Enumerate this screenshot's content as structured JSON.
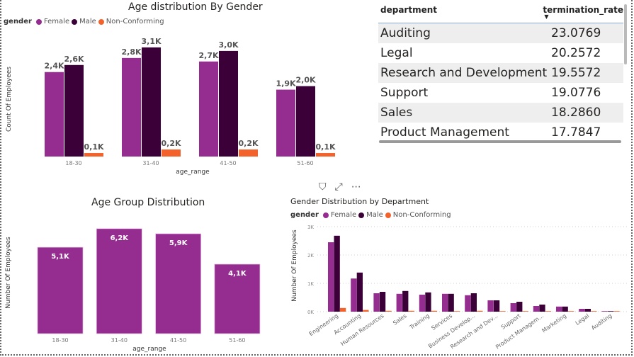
{
  "colors": {
    "female": "#952c8f",
    "male": "#3b0038",
    "nonconforming": "#f4622b"
  },
  "toolbar": {
    "filter_icon": "filter-icon",
    "focus_icon": "focus-mode-icon",
    "more_icon": "more-options-icon",
    "filter": "⛉",
    "focus": "⤢",
    "more": "⋯"
  },
  "table": {
    "headers": [
      "department",
      "termination_rate"
    ],
    "sort": "descending",
    "rows": [
      [
        "Auditing",
        "23.0769"
      ],
      [
        "Legal",
        "20.2572"
      ],
      [
        "Research and Development",
        "19.5572"
      ],
      [
        "Support",
        "19.0776"
      ],
      [
        "Sales",
        "18.2860"
      ],
      [
        "Product Management",
        "17.7847"
      ]
    ]
  },
  "chart_data": [
    {
      "type": "bar",
      "title": "Age distribution By Gender",
      "xlabel": "age_range",
      "ylabel": "Count Of Employees",
      "legend_title": "gender",
      "legend": "top-left",
      "categories": [
        "18-30",
        "31-40",
        "41-50",
        "51-60"
      ],
      "series": [
        {
          "name": "Female",
          "values": [
            2.4,
            2.8,
            2.7,
            1.9
          ],
          "labels": [
            "2,4K",
            "2,8K",
            "2,7K",
            "1,9K"
          ]
        },
        {
          "name": "Male",
          "values": [
            2.6,
            3.1,
            3.0,
            2.0
          ],
          "labels": [
            "2,6K",
            "3,1K",
            "3,0K",
            "2,0K"
          ]
        },
        {
          "name": "Non-Conforming",
          "values": [
            0.1,
            0.2,
            0.2,
            0.1
          ],
          "labels": [
            "0,1K",
            "0,2K",
            "0,2K",
            "0,1K"
          ]
        }
      ],
      "unit": "K"
    },
    {
      "type": "bar",
      "title": "Age Group Distribution",
      "xlabel": "age_range",
      "ylabel": "Number Of Employees",
      "categories": [
        "18-30",
        "31-40",
        "41-50",
        "51-60"
      ],
      "values": [
        5.1,
        6.2,
        5.9,
        4.1
      ],
      "labels": [
        "5,1K",
        "6,2K",
        "5,9K",
        "4,1K"
      ],
      "unit": "K"
    },
    {
      "type": "bar",
      "title": "Gender Distribution by Department",
      "xlabel": "",
      "ylabel": "Number Of Employees",
      "legend_title": "gender",
      "legend": "top-left",
      "grid": true,
      "ylim": [
        0,
        3
      ],
      "yticks": [
        "0K",
        "1K",
        "2K",
        "3K"
      ],
      "categories": [
        "Engineering",
        "Accounting",
        "Human Resources",
        "Sales",
        "Training",
        "Services",
        "Business Develop...",
        "Research and Dev...",
        "Support",
        "Product Managem...",
        "Marketing",
        "Legal",
        "Auditing"
      ],
      "series": [
        {
          "name": "Female",
          "values": [
            2.45,
            1.17,
            0.65,
            0.63,
            0.6,
            0.63,
            0.58,
            0.4,
            0.3,
            0.2,
            0.18,
            0.1,
            0.02
          ]
        },
        {
          "name": "Male",
          "values": [
            2.68,
            1.38,
            0.7,
            0.73,
            0.68,
            0.63,
            0.65,
            0.4,
            0.35,
            0.25,
            0.18,
            0.1,
            0.02
          ]
        },
        {
          "name": "Non-Conforming",
          "values": [
            0.13,
            0.06,
            0.03,
            0.03,
            0.03,
            0.02,
            0.03,
            0.01,
            0.01,
            0.01,
            0.01,
            0.01,
            0.0
          ]
        }
      ],
      "unit": "K"
    }
  ]
}
